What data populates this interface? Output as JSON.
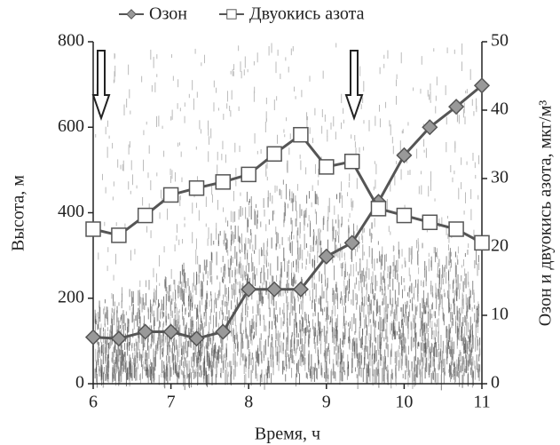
{
  "chart_data": {
    "type": "line",
    "x_label": "Время, ч",
    "y_label": "Высота, м",
    "y2_label": "Озон и двуокись азота, мкг/м³",
    "x": [
      6,
      6.33,
      6.67,
      7,
      7.33,
      7.67,
      8,
      8.33,
      8.67,
      9,
      9.33,
      9.67,
      10,
      10.33,
      10.67,
      11
    ],
    "series": [
      {
        "name": "Озон",
        "color": "#555555",
        "marker": "diamond",
        "axis": "y2",
        "values": [
          6.8,
          6.6,
          7.6,
          7.6,
          6.6,
          7.6,
          13.8,
          13.8,
          13.8,
          18.6,
          20.6,
          26.6,
          33.4,
          37.5,
          40.5,
          43.6
        ]
      },
      {
        "name": "Двуокись азота",
        "color": "#555555",
        "marker": "square",
        "axis": "y2",
        "values": [
          22.6,
          21.7,
          24.6,
          27.6,
          28.6,
          29.5,
          30.6,
          33.6,
          36.4,
          31.7,
          32.5,
          25.6,
          24.6,
          23.6,
          22.6,
          20.6
        ]
      }
    ],
    "xlim": [
      6,
      11
    ],
    "xticks": [
      6,
      7,
      8,
      9,
      10,
      11
    ],
    "ylim": [
      0,
      800
    ],
    "yticks": [
      0,
      200,
      400,
      600,
      800
    ],
    "y2lim": [
      0,
      50
    ],
    "y2ticks": [
      0,
      10,
      20,
      30,
      40,
      50
    ],
    "legend": "top"
  }
}
